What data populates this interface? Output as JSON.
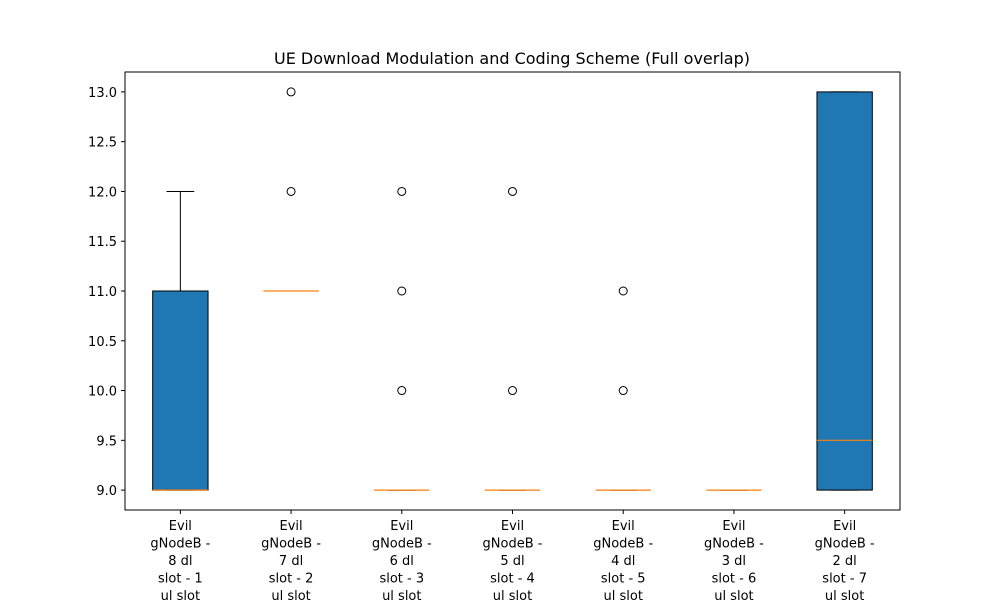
{
  "chart_data": {
    "type": "box",
    "title": "UE Download Modulation and Coding Scheme (Full overlap)",
    "xlabel": "",
    "ylabel": "",
    "ylim": [
      8.8,
      13.2
    ],
    "yticks": [
      "9.0",
      "9.5",
      "10.0",
      "10.5",
      "11.0",
      "11.5",
      "12.0",
      "12.5",
      "13.0"
    ],
    "grid": false,
    "box_color": "#1f77b4",
    "median_color": "#ff7f0e",
    "categories": [
      "Evil gNodeB - 8 dl slot - 1 ul slot",
      "Evil gNodeB - 7 dl slot - 2 ul slot",
      "Evil gNodeB - 6 dl slot - 3 ul slot",
      "Evil gNodeB - 5 dl slot - 4 ul slot",
      "Evil gNodeB - 4 dl slot - 5 ul slot",
      "Evil gNodeB - 3 dl slot - 6 ul slot",
      "Evil gNodeB - 2 dl slot - 7 ul slot"
    ],
    "category_lines": [
      [
        "Evil",
        "gNodeB -",
        "8 dl",
        "slot - 1",
        "ul slot"
      ],
      [
        "Evil",
        "gNodeB -",
        "7 dl",
        "slot - 2",
        "ul slot"
      ],
      [
        "Evil",
        "gNodeB -",
        "6 dl",
        "slot - 3",
        "ul slot"
      ],
      [
        "Evil",
        "gNodeB -",
        "5 dl",
        "slot - 4",
        "ul slot"
      ],
      [
        "Evil",
        "gNodeB -",
        "4 dl",
        "slot - 5",
        "ul slot"
      ],
      [
        "Evil",
        "gNodeB -",
        "3 dl",
        "slot - 6",
        "ul slot"
      ],
      [
        "Evil",
        "gNodeB -",
        "2 dl",
        "slot - 7",
        "ul slot"
      ]
    ],
    "boxes": [
      {
        "whisker_low": 9.0,
        "q1": 9.0,
        "median": 9.0,
        "q3": 11.0,
        "whisker_high": 12.0,
        "outliers": []
      },
      {
        "whisker_low": 11.0,
        "q1": 11.0,
        "median": 11.0,
        "q3": 11.0,
        "whisker_high": 11.0,
        "outliers": [
          13.0,
          12.0
        ]
      },
      {
        "whisker_low": 9.0,
        "q1": 9.0,
        "median": 9.0,
        "q3": 9.0,
        "whisker_high": 9.0,
        "outliers": [
          12.0,
          11.0,
          10.0
        ]
      },
      {
        "whisker_low": 9.0,
        "q1": 9.0,
        "median": 9.0,
        "q3": 9.0,
        "whisker_high": 9.0,
        "outliers": [
          12.0,
          10.0
        ]
      },
      {
        "whisker_low": 9.0,
        "q1": 9.0,
        "median": 9.0,
        "q3": 9.0,
        "whisker_high": 9.0,
        "outliers": [
          11.0,
          10.0
        ]
      },
      {
        "whisker_low": 9.0,
        "q1": 9.0,
        "median": 9.0,
        "q3": 9.0,
        "whisker_high": 9.0,
        "outliers": []
      },
      {
        "whisker_low": 9.0,
        "q1": 9.0,
        "median": 9.5,
        "q3": 13.0,
        "whisker_high": 13.0,
        "outliers": []
      }
    ]
  }
}
